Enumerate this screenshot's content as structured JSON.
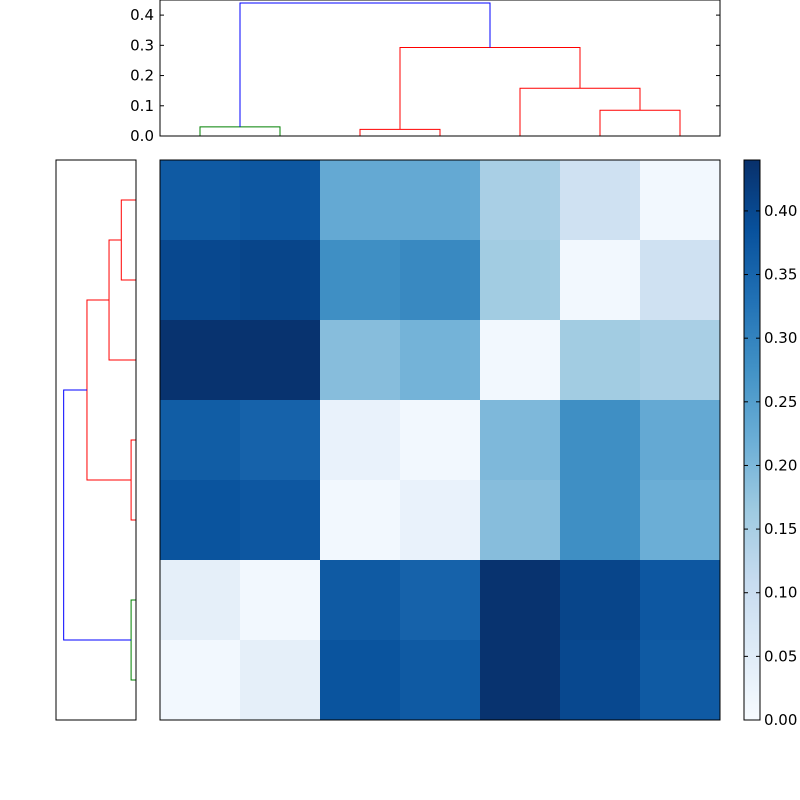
{
  "chart_data": [
    {
      "type": "dendrogram",
      "panel": "top",
      "yticks": [
        "0.0",
        "0.1",
        "0.2",
        "0.3",
        "0.4"
      ],
      "ylim": [
        0,
        0.45
      ],
      "leaf_count": 7,
      "links": [
        {
          "a": 0,
          "b": 1,
          "h": 0.03,
          "color": "#008000",
          "name": "link-a"
        },
        {
          "a": 2,
          "b": 3,
          "h": 0.022,
          "color": "#ff0000",
          "name": "link-b"
        },
        {
          "a": 5,
          "b": 6,
          "h": 0.085,
          "color": "#ff0000",
          "name": "link-c"
        },
        {
          "a": 4,
          "b": 5.5,
          "h": 0.158,
          "color": "#ff0000",
          "name": "link-d"
        },
        {
          "a": 2.5,
          "b": 4.75,
          "h": 0.293,
          "color": "#ff0000",
          "name": "link-e"
        },
        {
          "a": 0.5,
          "b": 3.625,
          "h": 0.44,
          "color": "#0000ff",
          "name": "link-f"
        }
      ]
    },
    {
      "type": "dendrogram",
      "panel": "left",
      "leaf_count": 7,
      "links": [
        {
          "a": 0,
          "b": 1,
          "h": 0.06,
          "color": "#ff0000",
          "name": "link-a"
        },
        {
          "a": 0.5,
          "b": 2,
          "h": 0.11,
          "color": "#ff0000",
          "name": "link-b"
        },
        {
          "a": 3,
          "b": 4,
          "h": 0.02,
          "color": "#ff0000",
          "name": "link-c"
        },
        {
          "a": 1.25,
          "b": 3.5,
          "h": 0.2,
          "color": "#ff0000",
          "name": "link-d"
        },
        {
          "a": 5,
          "b": 6,
          "h": 0.02,
          "color": "#008000",
          "name": "link-e"
        },
        {
          "a": 2.375,
          "b": 5.5,
          "h": 0.295,
          "color": "#0000ff",
          "name": "link-f"
        }
      ],
      "hlim": [
        0,
        0.31
      ]
    },
    {
      "type": "heatmap",
      "panel": "main",
      "rows": 7,
      "cols": 7,
      "values": [
        [
          0.37,
          0.375,
          0.23,
          0.23,
          0.15,
          0.09,
          0.01
        ],
        [
          0.4,
          0.405,
          0.28,
          0.29,
          0.16,
          0.01,
          0.09
        ],
        [
          0.435,
          0.435,
          0.19,
          0.21,
          0.01,
          0.16,
          0.15
        ],
        [
          0.365,
          0.355,
          0.03,
          0.01,
          0.2,
          0.28,
          0.23
        ],
        [
          0.38,
          0.375,
          0.01,
          0.03,
          0.19,
          0.28,
          0.22
        ],
        [
          0.04,
          0.01,
          0.37,
          0.355,
          0.435,
          0.405,
          0.375
        ],
        [
          0.01,
          0.04,
          0.38,
          0.37,
          0.435,
          0.4,
          0.37
        ]
      ],
      "colormap": "Blues",
      "vmin": 0.0,
      "vmax": 0.44
    },
    {
      "type": "colorbar",
      "panel": "right",
      "ticks": [
        "0.00",
        "0.05",
        "0.10",
        "0.15",
        "0.20",
        "0.25",
        "0.30",
        "0.35",
        "0.40"
      ],
      "range": [
        0.0,
        0.44
      ]
    }
  ]
}
